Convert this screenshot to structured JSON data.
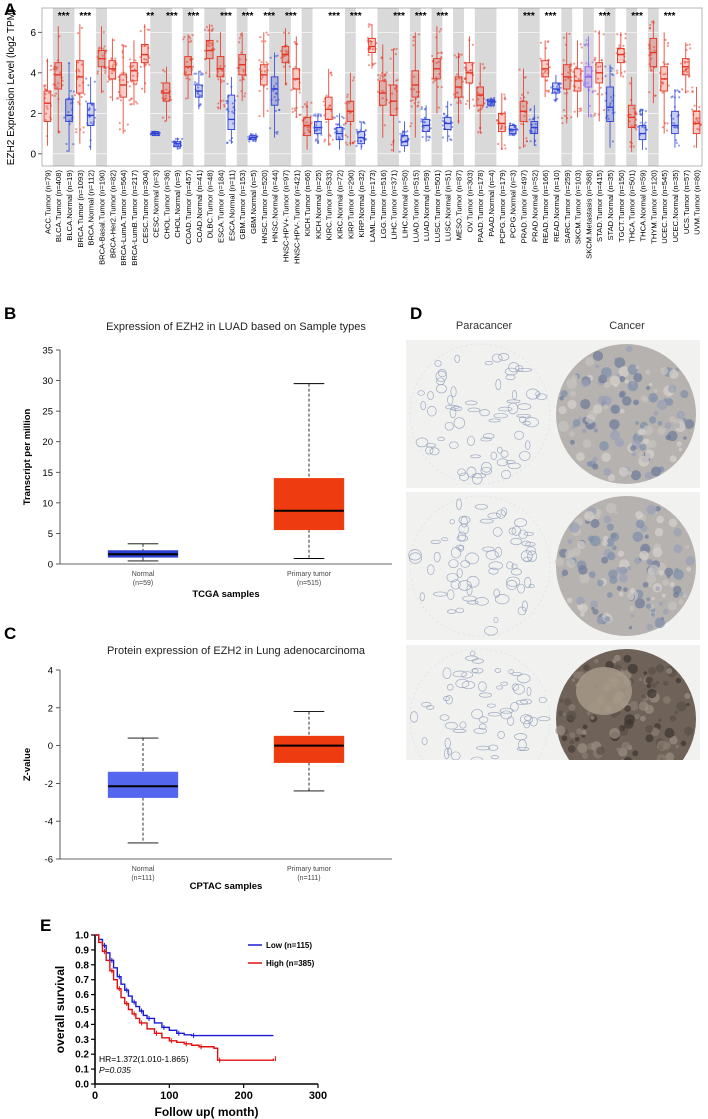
{
  "panels": {
    "a": "A",
    "b": "B",
    "c": "C",
    "d": "D",
    "e": "E"
  },
  "chart_data": [
    {
      "id": "A",
      "type": "box",
      "ylabel": "EZH2 Expression Level (log2 TPM)",
      "ylim": [
        -0.6,
        7.2
      ],
      "yticks": [
        0,
        2,
        4,
        6
      ],
      "shaded_pairs": [
        [
          1,
          3
        ],
        [
          5,
          6
        ],
        [
          10,
          12
        ],
        [
          13,
          14
        ],
        [
          15,
          17
        ],
        [
          18,
          19
        ],
        [
          21,
          23
        ],
        [
          24,
          25
        ],
        [
          28,
          29
        ],
        [
          31,
          33
        ],
        [
          34,
          35
        ],
        [
          36,
          37
        ],
        [
          38,
          39
        ],
        [
          40,
          42
        ],
        [
          44,
          46
        ],
        [
          48,
          49
        ],
        [
          50,
          51
        ],
        [
          52,
          53
        ],
        [
          54,
          55
        ],
        [
          56,
          57
        ]
      ],
      "series": [
        {
          "label": "ACC.Tumor (n=79)",
          "group": "tumor",
          "median": 2.5,
          "q1": 1.6,
          "q3": 3.1,
          "lo": 0.4,
          "hi": 4.7
        },
        {
          "label": "BLCA.Tumor (n=408)",
          "group": "tumor",
          "median": 3.9,
          "q1": 3.2,
          "q3": 4.5,
          "lo": 1.0,
          "hi": 6.3
        },
        {
          "label": "BLCA.Normal (n=19)",
          "group": "normal",
          "median": 1.9,
          "q1": 1.6,
          "q3": 2.7,
          "lo": 0.1,
          "hi": 4.5
        },
        {
          "label": "BRCA.Tumor (n=1093)",
          "group": "tumor",
          "median": 3.8,
          "q1": 3.0,
          "q3": 4.6,
          "lo": 0.5,
          "hi": 6.4
        },
        {
          "label": "BRCA.Normal (n=112)",
          "group": "normal",
          "median": 1.9,
          "q1": 1.4,
          "q3": 2.5,
          "lo": 0.2,
          "hi": 3.8
        },
        {
          "label": "BRCA-Basal.Tumor (n=190)",
          "group": "tumor",
          "median": 4.7,
          "q1": 4.3,
          "q3": 5.1,
          "lo": 3.0,
          "hi": 6.3
        },
        {
          "label": "BRCA-Her2.Tumor (n=82)",
          "group": "tumor",
          "median": 4.2,
          "q1": 3.7,
          "q3": 4.6,
          "lo": 2.6,
          "hi": 5.7
        },
        {
          "label": "BRCA-LumA.Tumor (n=564)",
          "group": "tumor",
          "median": 3.4,
          "q1": 2.8,
          "q3": 3.9,
          "lo": 1.0,
          "hi": 5.4
        },
        {
          "label": "BRCA-LumB.Tumor (n=217)",
          "group": "tumor",
          "median": 4.1,
          "q1": 3.6,
          "q3": 4.5,
          "lo": 2.4,
          "hi": 5.6
        },
        {
          "label": "CESC.Tumor (n=304)",
          "group": "tumor",
          "median": 4.9,
          "q1": 4.5,
          "q3": 5.4,
          "lo": 3.0,
          "hi": 6.4
        },
        {
          "label": "CESC.Normal (n=3)",
          "group": "normal",
          "median": 1.0,
          "q1": 0.9,
          "q3": 1.1,
          "lo": 0.9,
          "hi": 1.1
        },
        {
          "label": "CHOL.Tumor (n=36)",
          "group": "tumor",
          "median": 3.0,
          "q1": 2.6,
          "q3": 3.5,
          "lo": 1.6,
          "hi": 4.3
        },
        {
          "label": "CHOL.Normal (n=9)",
          "group": "normal",
          "median": 0.5,
          "q1": 0.35,
          "q3": 0.6,
          "lo": 0.2,
          "hi": 0.8
        },
        {
          "label": "COAD.Tumor (n=457)",
          "group": "tumor",
          "median": 4.3,
          "q1": 3.9,
          "q3": 4.8,
          "lo": 2.7,
          "hi": 5.9
        },
        {
          "label": "COAD.Normal (n=41)",
          "group": "normal",
          "median": 3.1,
          "q1": 2.8,
          "q3": 3.4,
          "lo": 2.2,
          "hi": 4.1
        },
        {
          "label": "DLBC.Tumor (n=48)",
          "group": "tumor",
          "median": 5.1,
          "q1": 4.7,
          "q3": 5.6,
          "lo": 3.8,
          "hi": 6.4
        },
        {
          "label": "ESCA.Tumor (n=184)",
          "group": "tumor",
          "median": 4.2,
          "q1": 3.8,
          "q3": 4.8,
          "lo": 2.2,
          "hi": 6.0
        },
        {
          "label": "ESCA.Normal (n=11)",
          "group": "normal",
          "median": 1.7,
          "q1": 1.2,
          "q3": 2.9,
          "lo": 0.5,
          "hi": 3.8
        },
        {
          "label": "GBM.Tumor (n=153)",
          "group": "tumor",
          "median": 4.4,
          "q1": 3.9,
          "q3": 4.9,
          "lo": 2.6,
          "hi": 6.0
        },
        {
          "label": "GBM.Normal (n=5)",
          "group": "normal",
          "median": 0.8,
          "q1": 0.7,
          "q3": 0.9,
          "lo": 0.6,
          "hi": 1.0
        },
        {
          "label": "HNSC.Tumor (n=520)",
          "group": "tumor",
          "median": 3.9,
          "q1": 3.4,
          "q3": 4.4,
          "lo": 1.8,
          "hi": 6.0
        },
        {
          "label": "HNSC.Normal (n=44)",
          "group": "normal",
          "median": 3.2,
          "q1": 2.4,
          "q3": 3.8,
          "lo": 0.8,
          "hi": 5.0
        },
        {
          "label": "HNSC-HPV+.Tumor (n=97)",
          "group": "tumor",
          "median": 4.9,
          "q1": 4.5,
          "q3": 5.3,
          "lo": 3.4,
          "hi": 6.2
        },
        {
          "label": "HNSC-HPV-.Tumor (n=421)",
          "group": "tumor",
          "median": 3.7,
          "q1": 3.2,
          "q3": 4.2,
          "lo": 1.8,
          "hi": 5.8
        },
        {
          "label": "KICH.Tumor (n=66)",
          "group": "tumor",
          "median": 1.4,
          "q1": 0.9,
          "q3": 1.8,
          "lo": 0.2,
          "hi": 2.6
        },
        {
          "label": "KICH.Normal (n=25)",
          "group": "normal",
          "median": 1.3,
          "q1": 1.0,
          "q3": 1.6,
          "lo": 0.5,
          "hi": 2.0
        },
        {
          "label": "KIRC.Tumor (n=533)",
          "group": "tumor",
          "median": 2.2,
          "q1": 1.7,
          "q3": 2.8,
          "lo": 0.4,
          "hi": 4.2
        },
        {
          "label": "KIRC.Normal (n=72)",
          "group": "normal",
          "median": 1.0,
          "q1": 0.7,
          "q3": 1.3,
          "lo": 0.2,
          "hi": 2.0
        },
        {
          "label": "KIRP.Tumor (n=290)",
          "group": "tumor",
          "median": 2.1,
          "q1": 1.6,
          "q3": 2.6,
          "lo": 0.4,
          "hi": 4.0
        },
        {
          "label": "KIRP.Normal (n=32)",
          "group": "normal",
          "median": 0.8,
          "q1": 0.5,
          "q3": 1.1,
          "lo": 0.2,
          "hi": 1.6
        },
        {
          "label": "LAML.Tumor (n=173)",
          "group": "tumor",
          "median": 5.3,
          "q1": 5.0,
          "q3": 5.7,
          "lo": 4.2,
          "hi": 6.4
        },
        {
          "label": "LGG.Tumor (n=516)",
          "group": "tumor",
          "median": 3.0,
          "q1": 2.4,
          "q3": 3.6,
          "lo": 0.8,
          "hi": 5.4
        },
        {
          "label": "LIHC.Tumor (n=371)",
          "group": "tumor",
          "median": 2.6,
          "q1": 1.9,
          "q3": 3.4,
          "lo": 0.1,
          "hi": 5.2
        },
        {
          "label": "LIHC.Normal (n=50)",
          "group": "normal",
          "median": 0.6,
          "q1": 0.4,
          "q3": 0.9,
          "lo": 0.1,
          "hi": 1.6
        },
        {
          "label": "LUAD.Tumor (n=515)",
          "group": "tumor",
          "median": 3.4,
          "q1": 2.8,
          "q3": 4.1,
          "lo": 0.8,
          "hi": 6.0
        },
        {
          "label": "LUAD.Normal (n=59)",
          "group": "normal",
          "median": 1.4,
          "q1": 1.1,
          "q3": 1.7,
          "lo": 0.6,
          "hi": 2.4
        },
        {
          "label": "LUSC.Tumor (n=501)",
          "group": "tumor",
          "median": 4.2,
          "q1": 3.7,
          "q3": 4.7,
          "lo": 2.0,
          "hi": 6.3
        },
        {
          "label": "LUSC.Normal (n=51)",
          "group": "normal",
          "median": 1.5,
          "q1": 1.2,
          "q3": 1.8,
          "lo": 0.6,
          "hi": 2.6
        },
        {
          "label": "MESO.Tumor (n=87)",
          "group": "tumor",
          "median": 3.3,
          "q1": 2.8,
          "q3": 3.8,
          "lo": 1.5,
          "hi": 5.0
        },
        {
          "label": "OV.Tumor (n=303)",
          "group": "tumor",
          "median": 4.0,
          "q1": 3.5,
          "q3": 4.5,
          "lo": 2.2,
          "hi": 5.8
        },
        {
          "label": "PAAD.Tumor (n=178)",
          "group": "tumor",
          "median": 2.9,
          "q1": 2.4,
          "q3": 3.3,
          "lo": 1.0,
          "hi": 4.5
        },
        {
          "label": "PAAD.Normal (n=4)",
          "group": "normal",
          "median": 2.6,
          "q1": 2.4,
          "q3": 2.7,
          "lo": 2.3,
          "hi": 2.8
        },
        {
          "label": "PCPG.Tumor (n=179)",
          "group": "tumor",
          "median": 1.5,
          "q1": 1.1,
          "q3": 2.0,
          "lo": 0.2,
          "hi": 3.0
        },
        {
          "label": "PCPG.Normal (n=3)",
          "group": "normal",
          "median": 1.2,
          "q1": 1.0,
          "q3": 1.4,
          "lo": 0.9,
          "hi": 1.5
        },
        {
          "label": "PRAD.Tumor (n=497)",
          "group": "tumor",
          "median": 2.1,
          "q1": 1.6,
          "q3": 2.6,
          "lo": 0.3,
          "hi": 4.2
        },
        {
          "label": "PRAD.Normal (n=52)",
          "group": "normal",
          "median": 1.3,
          "q1": 1.0,
          "q3": 1.6,
          "lo": 0.4,
          "hi": 2.4
        },
        {
          "label": "READ.Tumor (n=166)",
          "group": "tumor",
          "median": 4.2,
          "q1": 3.8,
          "q3": 4.6,
          "lo": 2.8,
          "hi": 5.6
        },
        {
          "label": "READ.Normal (n=10)",
          "group": "normal",
          "median": 3.2,
          "q1": 3.0,
          "q3": 3.5,
          "lo": 2.6,
          "hi": 3.9
        },
        {
          "label": "SARC.Tumor (n=259)",
          "group": "tumor",
          "median": 3.8,
          "q1": 3.2,
          "q3": 4.4,
          "lo": 1.5,
          "hi": 6.0
        },
        {
          "label": "SKCM.Tumor (n=103)",
          "group": "tumor",
          "median": 3.6,
          "q1": 3.1,
          "q3": 4.2,
          "lo": 1.8,
          "hi": 5.6
        },
        {
          "label": "SKCM.Metastasis (n=368)",
          "group": "metastasis",
          "median": 3.8,
          "q1": 3.3,
          "q3": 4.3,
          "lo": 1.8,
          "hi": 5.8
        },
        {
          "label": "STAD.Tumor (n=415)",
          "group": "tumor",
          "median": 4.0,
          "q1": 3.5,
          "q3": 4.5,
          "lo": 1.6,
          "hi": 6.1
        },
        {
          "label": "STAD.Normal (n=35)",
          "group": "normal",
          "median": 2.3,
          "q1": 1.6,
          "q3": 3.3,
          "lo": 0.3,
          "hi": 4.4
        },
        {
          "label": "TGCT.Tumor (n=150)",
          "group": "tumor",
          "median": 4.9,
          "q1": 4.5,
          "q3": 5.2,
          "lo": 3.8,
          "hi": 6.0
        },
        {
          "label": "THCA.Tumor (n=501)",
          "group": "tumor",
          "median": 1.8,
          "q1": 1.3,
          "q3": 2.4,
          "lo": 0.1,
          "hi": 3.8
        },
        {
          "label": "THCA.Normal (n=59)",
          "group": "normal",
          "median": 1.0,
          "q1": 0.7,
          "q3": 1.4,
          "lo": 0.2,
          "hi": 2.2
        },
        {
          "label": "THYM.Tumor (n=120)",
          "group": "tumor",
          "median": 5.0,
          "q1": 4.3,
          "q3": 5.7,
          "lo": 2.5,
          "hi": 6.6
        },
        {
          "label": "UCEC.Tumor (n=545)",
          "group": "tumor",
          "median": 3.7,
          "q1": 3.1,
          "q3": 4.3,
          "lo": 1.0,
          "hi": 6.0
        },
        {
          "label": "UCEC.Normal (n=35)",
          "group": "normal",
          "median": 1.4,
          "q1": 1.0,
          "q3": 2.1,
          "lo": 0.3,
          "hi": 3.2
        },
        {
          "label": "UCS.Tumor (n=57)",
          "group": "tumor",
          "median": 4.3,
          "q1": 3.9,
          "q3": 4.7,
          "lo": 3.0,
          "hi": 5.5
        },
        {
          "label": "UVM.Tumor (n=80)",
          "group": "tumor",
          "median": 1.5,
          "q1": 1.0,
          "q3": 2.1,
          "lo": 0.3,
          "hi": 3.3
        }
      ],
      "significance": [
        {
          "index": 1,
          "text": "***"
        },
        {
          "index": 3,
          "text": "***"
        },
        {
          "index": 9,
          "text": "**"
        },
        {
          "index": 11,
          "text": "***"
        },
        {
          "index": 13,
          "text": "***"
        },
        {
          "index": 16,
          "text": "***"
        },
        {
          "index": 18,
          "text": "***"
        },
        {
          "index": 20,
          "text": "***"
        },
        {
          "index": 22,
          "text": "***"
        },
        {
          "index": 26,
          "text": "***"
        },
        {
          "index": 28,
          "text": "***"
        },
        {
          "index": 32,
          "text": "***"
        },
        {
          "index": 34,
          "text": "***"
        },
        {
          "index": 36,
          "text": "***"
        },
        {
          "index": 44,
          "text": "***"
        },
        {
          "index": 46,
          "text": "***"
        },
        {
          "index": 51,
          "text": "***"
        },
        {
          "index": 54,
          "text": "***"
        },
        {
          "index": 57,
          "text": "***"
        }
      ],
      "colors": {
        "tumor": "#e8321f",
        "normal": "#2a3fd8",
        "metastasis": "#8b5cf6",
        "shade": "#d9d9d9"
      }
    },
    {
      "id": "B",
      "type": "box",
      "title": "Expression of EZH2 in LUAD based on Sample types",
      "ylabel": "Transcript per million",
      "xlabel": "TCGA samples",
      "ylim": [
        0,
        35
      ],
      "yticks": [
        0,
        5,
        10,
        15,
        20,
        25,
        30,
        35
      ],
      "boxes": [
        {
          "name": "Normal",
          "n": "(n=59)",
          "median": 1.6,
          "q1": 1.1,
          "q3": 2.2,
          "lo": 0.5,
          "hi": 3.3,
          "color": "#2b3fd1"
        },
        {
          "name": "Primary tumor",
          "n": "(n=515)",
          "median": 8.7,
          "q1": 5.6,
          "q3": 14.0,
          "lo": 0.9,
          "hi": 29.5,
          "color": "#ee3b10"
        }
      ]
    },
    {
      "id": "C",
      "type": "box",
      "title": "Protein expression of EZH2 in Lung adenocarcinoma",
      "ylabel": "Z-value",
      "xlabel": "CPTAC samples",
      "ylim": [
        -6,
        4
      ],
      "yticks": [
        -6,
        -4,
        -2,
        0,
        2,
        4
      ],
      "boxes": [
        {
          "name": "Normal",
          "n": "(n=111)",
          "median": -2.15,
          "q1": -2.75,
          "q3": -1.4,
          "lo": -5.15,
          "hi": 0.4,
          "color": "#5566ee"
        },
        {
          "name": "Primary tumor",
          "n": "(n=111)",
          "median": 0.0,
          "q1": -0.9,
          "q3": 0.5,
          "lo": -2.4,
          "hi": 1.8,
          "color": "#ee3b10"
        }
      ]
    },
    {
      "id": "E",
      "type": "line",
      "ylabel": "overall survival",
      "xlabel": "Follow up( month)",
      "xlim": [
        0,
        300
      ],
      "ylim": [
        0,
        1.0
      ],
      "xticks": [
        0,
        100,
        200,
        300
      ],
      "yticks": [
        0.0,
        0.1,
        0.2,
        0.3,
        0.4,
        0.5,
        0.6,
        0.7,
        0.8,
        0.9,
        1.0
      ],
      "series": [
        {
          "name": "Low (n=115)",
          "color": "#1a1ad6",
          "x": [
            0,
            5,
            10,
            15,
            20,
            25,
            30,
            35,
            40,
            45,
            50,
            55,
            60,
            65,
            70,
            80,
            90,
            100,
            110,
            120,
            130,
            240
          ],
          "y": [
            1.0,
            0.97,
            0.93,
            0.88,
            0.83,
            0.78,
            0.72,
            0.67,
            0.63,
            0.59,
            0.55,
            0.52,
            0.49,
            0.46,
            0.44,
            0.41,
            0.38,
            0.36,
            0.34,
            0.33,
            0.325,
            0.325
          ]
        },
        {
          "name": "High (n=385)",
          "color": "#e01010",
          "x": [
            0,
            5,
            10,
            15,
            20,
            25,
            30,
            35,
            40,
            45,
            50,
            55,
            60,
            70,
            80,
            90,
            100,
            110,
            120,
            130,
            140,
            160,
            165,
            235,
            240
          ],
          "y": [
            1.0,
            0.95,
            0.89,
            0.83,
            0.76,
            0.7,
            0.64,
            0.58,
            0.54,
            0.5,
            0.47,
            0.44,
            0.41,
            0.37,
            0.34,
            0.31,
            0.29,
            0.28,
            0.27,
            0.26,
            0.25,
            0.24,
            0.16,
            0.16,
            0.17
          ]
        }
      ],
      "annotations": {
        "hr": "HR=1.372(1.010-1.865)",
        "p": "P=0.035"
      }
    }
  ],
  "panel_d": {
    "columns": [
      "Paracancer",
      "Cancer"
    ]
  }
}
